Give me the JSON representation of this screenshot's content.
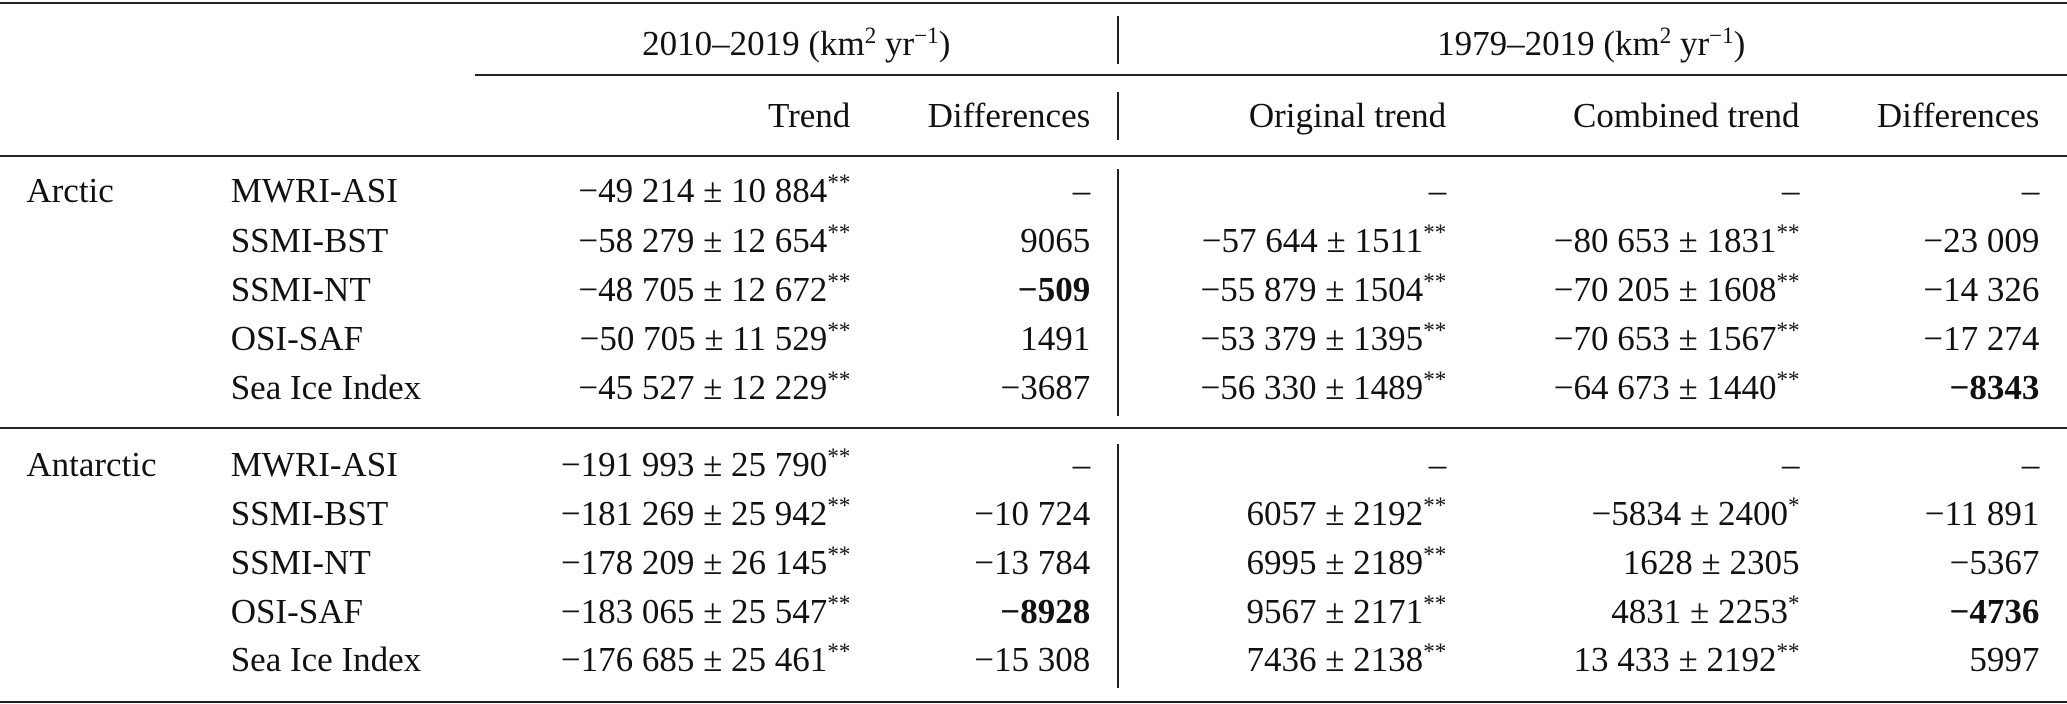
{
  "header": {
    "groups": [
      {
        "text": "2010–2019 (km",
        "unit_exp": "2",
        "unit_mid": " yr",
        "time_exp": "−1",
        "close": ")"
      },
      {
        "text": "1979–2019 (km",
        "unit_exp": "2",
        "unit_mid": " yr",
        "time_exp": "−1",
        "close": ")"
      }
    ],
    "columns": [
      "Trend",
      "Differences",
      "Original trend",
      "Combined trend",
      "Differences"
    ]
  },
  "sections": [
    {
      "region": "Arctic",
      "rows": [
        {
          "product": "MWRI-ASI",
          "cells": [
            {
              "text": "−49 214 ± 10 884",
              "sig": "**"
            },
            {
              "text": "–"
            },
            {
              "text": "–"
            },
            {
              "text": "–"
            },
            {
              "text": "–"
            }
          ]
        },
        {
          "product": "SSMI-BST",
          "cells": [
            {
              "text": "−58 279 ± 12 654",
              "sig": "**"
            },
            {
              "text": "9065"
            },
            {
              "text": "−57 644 ± 1511",
              "sig": "**"
            },
            {
              "text": "−80 653 ± 1831",
              "sig": "**"
            },
            {
              "text": "−23 009"
            }
          ]
        },
        {
          "product": "SSMI-NT",
          "cells": [
            {
              "text": "−48 705 ± 12 672",
              "sig": "**"
            },
            {
              "text": "−509",
              "bold": true
            },
            {
              "text": "−55 879 ± 1504",
              "sig": "**"
            },
            {
              "text": "−70 205 ± 1608",
              "sig": "**"
            },
            {
              "text": "−14 326"
            }
          ]
        },
        {
          "product": "OSI-SAF",
          "cells": [
            {
              "text": "−50 705 ± 11 529",
              "sig": "**"
            },
            {
              "text": "1491"
            },
            {
              "text": "−53 379 ± 1395",
              "sig": "**"
            },
            {
              "text": "−70 653 ± 1567",
              "sig": "**"
            },
            {
              "text": "−17 274"
            }
          ]
        },
        {
          "product": "Sea Ice Index",
          "cells": [
            {
              "text": "−45 527 ± 12 229",
              "sig": "**"
            },
            {
              "text": "−3687"
            },
            {
              "text": "−56 330 ± 1489",
              "sig": "**"
            },
            {
              "text": "−64 673 ± 1440",
              "sig": "**"
            },
            {
              "text": "−8343",
              "bold": true
            }
          ]
        }
      ]
    },
    {
      "region": "Antarctic",
      "rows": [
        {
          "product": "MWRI-ASI",
          "cells": [
            {
              "text": "−191 993 ± 25 790",
              "sig": "**"
            },
            {
              "text": "–"
            },
            {
              "text": "–"
            },
            {
              "text": "–"
            },
            {
              "text": "–"
            }
          ]
        },
        {
          "product": "SSMI-BST",
          "cells": [
            {
              "text": "−181 269 ± 25 942",
              "sig": "**"
            },
            {
              "text": "−10 724"
            },
            {
              "text": "6057 ± 2192",
              "sig": "**"
            },
            {
              "text": "−5834 ± 2400",
              "sig": "*"
            },
            {
              "text": "−11 891"
            }
          ]
        },
        {
          "product": "SSMI-NT",
          "cells": [
            {
              "text": "−178 209 ± 26 145",
              "sig": "**"
            },
            {
              "text": "−13 784"
            },
            {
              "text": "6995 ± 2189",
              "sig": "**"
            },
            {
              "text": "1628 ± 2305"
            },
            {
              "text": "−5367"
            }
          ]
        },
        {
          "product": "OSI-SAF",
          "cells": [
            {
              "text": "−183 065 ± 25 547",
              "sig": "**"
            },
            {
              "text": "−8928",
              "bold": true
            },
            {
              "text": "9567 ± 2171",
              "sig": "**"
            },
            {
              "text": "4831 ± 2253",
              "sig": "*"
            },
            {
              "text": "−4736",
              "bold": true
            }
          ]
        },
        {
          "product": "Sea Ice Index",
          "cells": [
            {
              "text": "−176 685 ± 25 461",
              "sig": "**"
            },
            {
              "text": "−15 308"
            },
            {
              "text": "7436 ± 2138",
              "sig": "**"
            },
            {
              "text": "13 433 ± 2192",
              "sig": "**"
            },
            {
              "text": "5997"
            }
          ]
        }
      ]
    }
  ]
}
